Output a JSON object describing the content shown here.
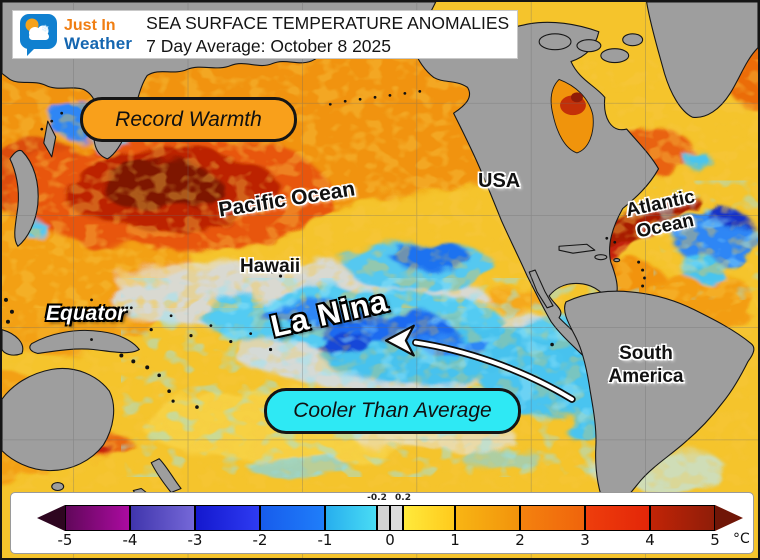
{
  "header": {
    "logo": {
      "icon": "cloud-sun-snowflake-logo",
      "brand_line1": "Just In",
      "brand_line2": "Weather",
      "brand_color1": "#F07E12",
      "brand_color2": "#1566B0"
    },
    "title_line1": "SEA SURFACE TEMPERATURE ANOMALIES",
    "title_line2": "7 Day Average: October 8 2025"
  },
  "map_annotations": {
    "record_warmth_label": "Record Warmth",
    "cooler_label": "Cooler Than Average",
    "callout_warm_bg": "#F9A01B",
    "callout_cool_bg": "#2EE9F4",
    "pacific_ocean": "Pacific Ocean",
    "usa": "USA",
    "atlantic_line1": "Atlantic",
    "atlantic_line2": "Ocean",
    "hawaii": "Hawaii",
    "equator": "Equator",
    "la_nina": "La Nina",
    "south_america_line1": "South",
    "south_america_line2": "America",
    "arrow_icon": "curved-left-arrow"
  },
  "colorbar": {
    "unit_label": "°C",
    "ticks": [
      {
        "value": -5,
        "label": "-5"
      },
      {
        "value": -4,
        "label": "-4"
      },
      {
        "value": -3,
        "label": "-3"
      },
      {
        "value": -2,
        "label": "-2"
      },
      {
        "value": -1,
        "label": "-1"
      },
      {
        "value": 0,
        "label": "0"
      },
      {
        "value": 1,
        "label": "1"
      },
      {
        "value": 2,
        "label": "2"
      },
      {
        "value": 3,
        "label": "3"
      },
      {
        "value": 4,
        "label": "4"
      },
      {
        "value": 5,
        "label": "5"
      }
    ],
    "inner_ticks": [
      {
        "value": -0.2,
        "label": "-0.2"
      },
      {
        "value": 0.2,
        "label": "0.2"
      }
    ],
    "segments": [
      {
        "from": -5,
        "to": -4,
        "start": "#61075A",
        "end": "#AB0BA0"
      },
      {
        "from": -4,
        "to": -3,
        "start": "#4035AC",
        "end": "#7568D8"
      },
      {
        "from": -3,
        "to": -2,
        "start": "#1418CE",
        "end": "#2E3BF2"
      },
      {
        "from": -2,
        "to": -1,
        "start": "#175CEC",
        "end": "#1F7EFA"
      },
      {
        "from": -1,
        "to": -0.2,
        "start": "#27AEEE",
        "end": "#49DCF4"
      },
      {
        "from": -0.2,
        "to": 0,
        "start": "#D2D2D2",
        "end": "#D2D2D2"
      },
      {
        "from": 0,
        "to": 0.2,
        "start": "#DCDCDC",
        "end": "#DCDCDC"
      },
      {
        "from": 0.2,
        "to": 1,
        "start": "#FFEA3C",
        "end": "#FFCA1C"
      },
      {
        "from": 1,
        "to": 2,
        "start": "#F8B514",
        "end": "#F2930B"
      },
      {
        "from": 2,
        "to": 3,
        "start": "#F4820E",
        "end": "#F0640C"
      },
      {
        "from": 3,
        "to": 4,
        "start": "#EE3E0C",
        "end": "#E32608"
      },
      {
        "from": 4,
        "to": 5,
        "start": "#C22407",
        "end": "#8F1D08"
      }
    ],
    "left_arrow_color": "#2E0620",
    "right_arrow_color": "#701607"
  }
}
